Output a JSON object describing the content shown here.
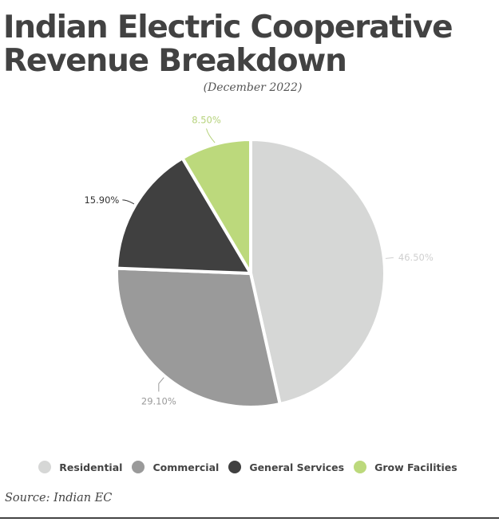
{
  "header": {
    "title_line1": "Indian Electric Cooperative",
    "title_line2": "Revenue Breakdown",
    "subtitle": "(December 2022)"
  },
  "footer": {
    "source": "Source: Indian EC"
  },
  "chart_data": {
    "type": "pie",
    "title": "Indian Electric Cooperative Revenue Breakdown",
    "subtitle": "(December 2022)",
    "categories": [
      "Residential",
      "Commercial",
      "General Services",
      "Grow Facilities"
    ],
    "values": [
      46.5,
      29.1,
      15.9,
      8.5
    ],
    "labels": [
      "46.50%",
      "29.10%",
      "15.90%",
      "8.50%"
    ],
    "colors": [
      "#d6d7d6",
      "#9a9a9a",
      "#404040",
      "#bcd97c"
    ],
    "start_angle": "12 o'clock",
    "direction": "clockwise",
    "legend_position": "bottom",
    "source": "Source: Indian EC"
  }
}
